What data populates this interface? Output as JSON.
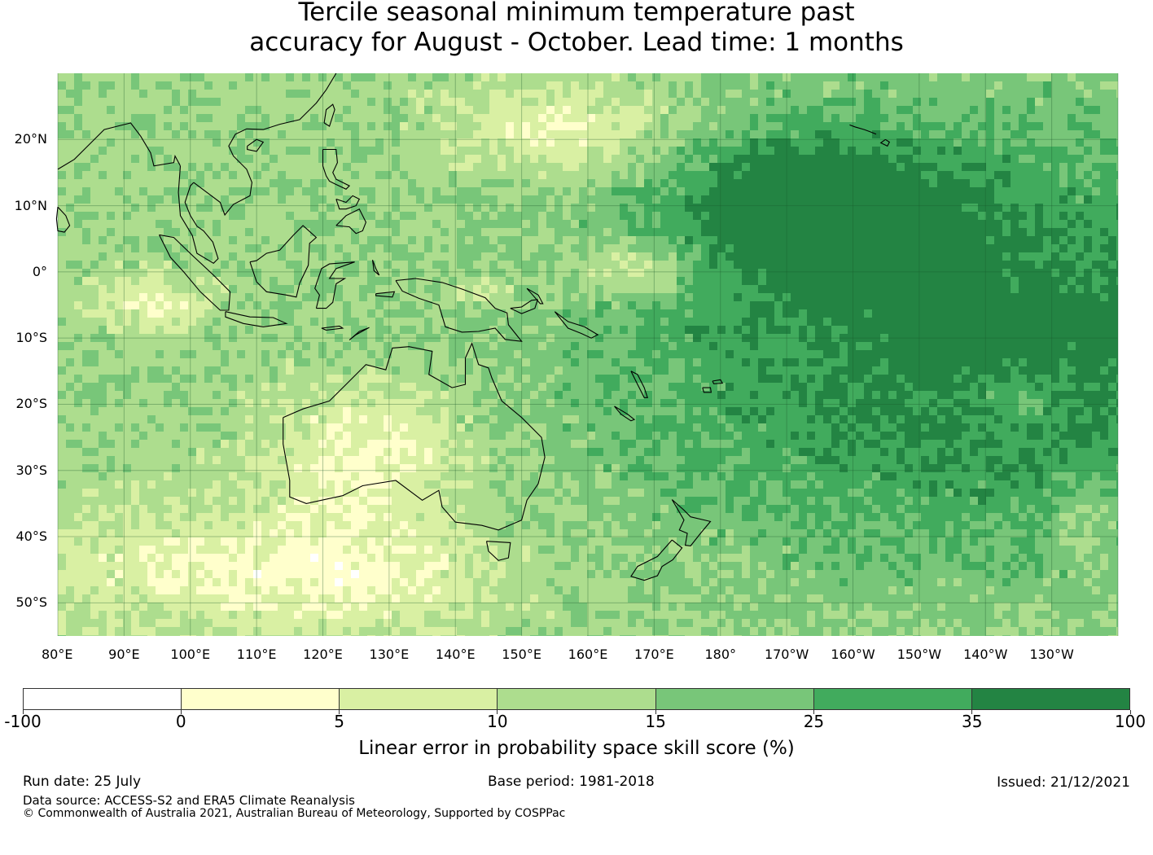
{
  "title_line1": "Tercile seasonal minimum temperature past",
  "title_line2": "accuracy for August - October. Lead time: 1 months",
  "map": {
    "lon_labels": [
      "80°E",
      "90°E",
      "100°E",
      "110°E",
      "120°E",
      "130°E",
      "140°E",
      "150°E",
      "160°E",
      "170°E",
      "180°",
      "170°W",
      "160°W",
      "150°W",
      "140°W",
      "130°W"
    ],
    "lat_labels": [
      "20°N",
      "10°N",
      "0°",
      "10°S",
      "20°S",
      "30°S",
      "40°S",
      "50°S"
    ]
  },
  "colorbar": {
    "ticks": [
      "-100",
      "0",
      "5",
      "10",
      "15",
      "25",
      "35",
      "100"
    ],
    "colors": [
      "#ffffff",
      "#ffffcc",
      "#d9f0a3",
      "#addd8e",
      "#78c679",
      "#41ab5d",
      "#238443"
    ],
    "label": "Linear error in probability space skill score (%)"
  },
  "footer": {
    "run_date": "Run date: 25 July",
    "base_period": "Base period: 1981-2018",
    "issued": "Issued: 21/12/2021",
    "data_source": "Data source: ACCESS-S2 and ERA5 Climate Reanalysis",
    "copyright": "© Commonwealth of Australia 2021, Australian Bureau of Meteorology, Supported by COSPPac"
  }
}
